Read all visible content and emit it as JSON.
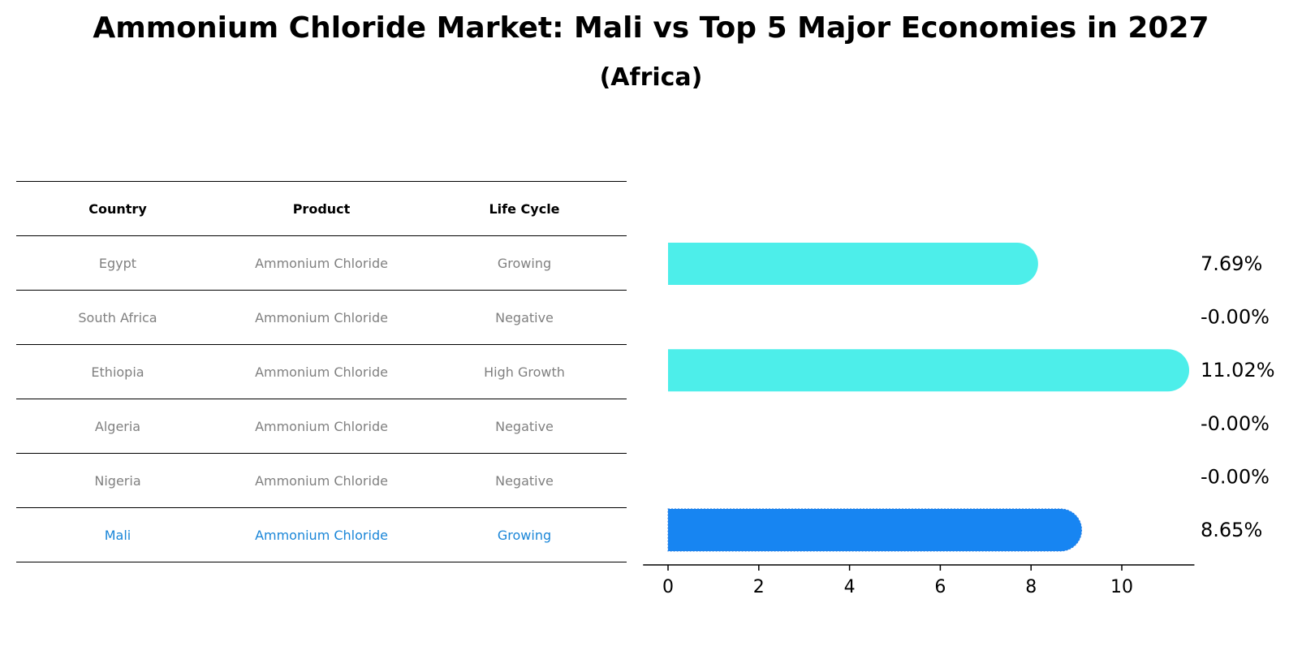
{
  "title": "Ammonium Chloride Market: Mali vs Top 5 Major Economies in 2027",
  "subtitle": "(Africa)",
  "table": {
    "headers": [
      "Country",
      "Product",
      "Life Cycle"
    ],
    "rows": [
      {
        "country": "Egypt",
        "product": "Ammonium Chloride",
        "life_cycle": "Growing"
      },
      {
        "country": "South Africa",
        "product": "Ammonium Chloride",
        "life_cycle": "Negative"
      },
      {
        "country": "Ethiopia",
        "product": "Ammonium Chloride",
        "life_cycle": "High Growth"
      },
      {
        "country": "Algeria",
        "product": "Ammonium Chloride",
        "life_cycle": "Negative"
      },
      {
        "country": "Nigeria",
        "product": "Ammonium Chloride",
        "life_cycle": "Negative"
      },
      {
        "country": "Mali",
        "product": "Ammonium Chloride",
        "life_cycle": "Growing"
      }
    ]
  },
  "colors": {
    "bar": "#4deeea",
    "highlight_bar": "#1785f2",
    "highlight_text": "#1a86d8",
    "muted_text": "#808080"
  },
  "chart_data": {
    "type": "bar",
    "orientation": "horizontal",
    "categories": [
      "Egypt",
      "South Africa",
      "Ethiopia",
      "Algeria",
      "Nigeria",
      "Mali"
    ],
    "values": [
      7.69,
      -0.0,
      11.02,
      -0.0,
      -0.0,
      8.65
    ],
    "value_labels": [
      "7.69%",
      "-0.00%",
      "11.02%",
      "-0.00%",
      "-0.00%",
      "8.65%"
    ],
    "highlight": "Mali",
    "x_ticks": [
      0,
      2,
      4,
      6,
      8,
      10
    ],
    "xlim": [
      -0.55,
      11.6
    ],
    "xlabel": "",
    "ylabel": ""
  }
}
